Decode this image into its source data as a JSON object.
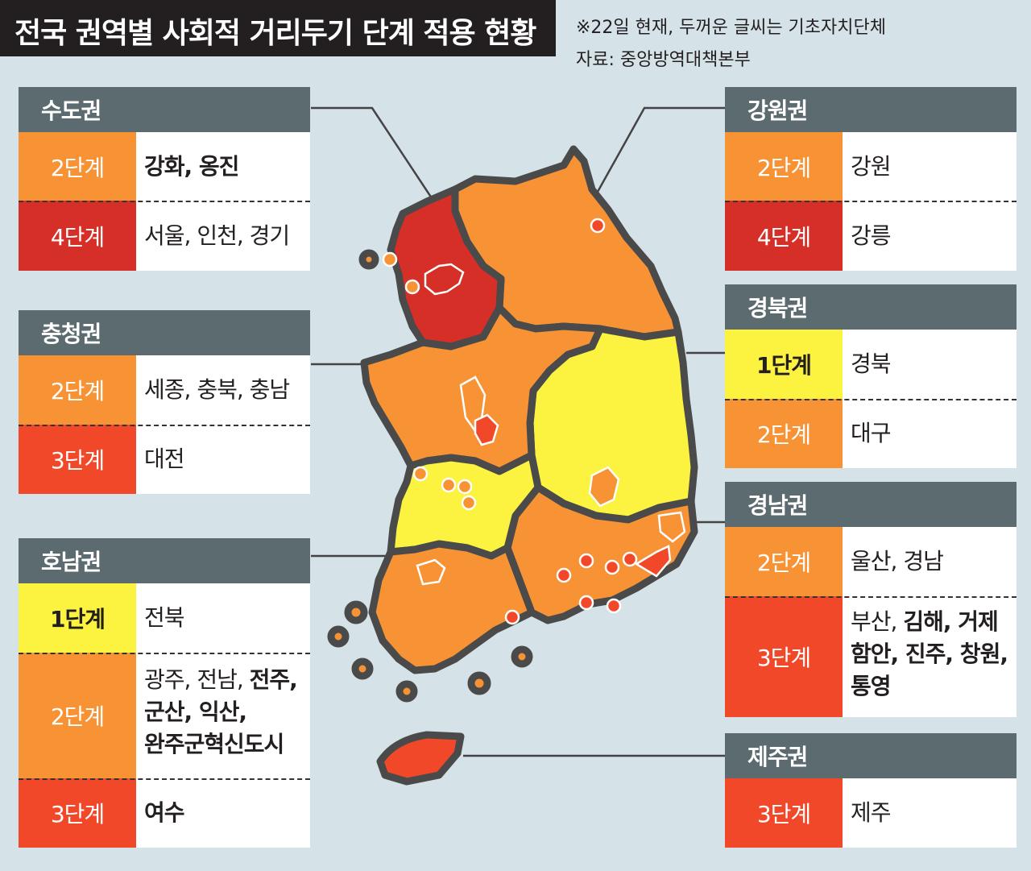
{
  "header": {
    "title": "전국 권역별 사회적 거리두기 단계 적용 현황",
    "note_line1": "※22일 현재, 두꺼운 글씨는 기초자치단체",
    "note_line2": "자료: 중앙방역대책본부"
  },
  "colors": {
    "level1": "#fbf33f",
    "level2": "#f79335",
    "level3": "#f2482a",
    "level4": "#d52f27",
    "panel_header": "#5b6b6f",
    "background": "#d5e2e7"
  },
  "panels": {
    "sudo": {
      "name": "수도권",
      "rows": [
        {
          "level": "2단계",
          "regions": "강화, 옹진"
        },
        {
          "level": "4단계",
          "regions": "서울, 인천, 경기"
        }
      ]
    },
    "chungcheong": {
      "name": "충청권",
      "rows": [
        {
          "level": "2단계",
          "regions": "세종, 충북, 충남"
        },
        {
          "level": "3단계",
          "regions": "대전"
        }
      ]
    },
    "honam": {
      "name": "호남권",
      "rows": [
        {
          "level": "1단계",
          "regions": "전북"
        },
        {
          "level": "2단계",
          "regions_normal": "광주, 전남, ",
          "regions_bold_1": "전주,",
          "regions_bold_2": "군산, 익산,",
          "regions_bold_3": "완주군혁신도시"
        },
        {
          "level": "3단계",
          "regions": "여수"
        }
      ]
    },
    "gangwon": {
      "name": "강원권",
      "rows": [
        {
          "level": "2단계",
          "regions": "강원"
        },
        {
          "level": "4단계",
          "regions": "강릉"
        }
      ]
    },
    "gyeongbuk": {
      "name": "경북권",
      "rows": [
        {
          "level": "1단계",
          "regions": "경북"
        },
        {
          "level": "2단계",
          "regions": "대구"
        }
      ]
    },
    "gyeongnam": {
      "name": "경남권",
      "rows": [
        {
          "level": "2단계",
          "regions": "울산, 경남"
        },
        {
          "level": "3단계",
          "regions_normal": "부산, ",
          "regions_bold_1": "김해, 거제",
          "regions_bold_2": "함안, 진주, 창원,",
          "regions_bold_3": "통영"
        }
      ]
    },
    "jeju": {
      "name": "제주권",
      "rows": [
        {
          "level": "3단계",
          "regions": "제주"
        }
      ]
    }
  }
}
